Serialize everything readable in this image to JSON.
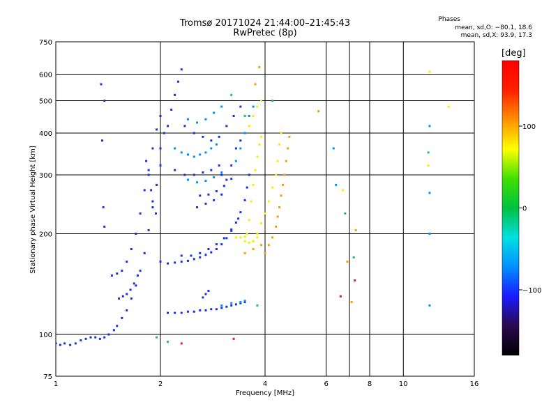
{
  "chart_data": {
    "type": "scatter",
    "title": "Tromsø 20171024 21:44:00–21:45:43",
    "subtitle": "RwPretec (8p)",
    "xlabel": "Frequency [MHz]",
    "ylabel": "Stationary phase Virtual Height [km]",
    "x_scale": "log",
    "y_scale": "log",
    "xlim": [
      1,
      16
    ],
    "ylim": [
      75,
      750
    ],
    "x_ticks": [
      "1",
      "2",
      "4",
      "6",
      "8",
      "10",
      "16"
    ],
    "x_tick_values": [
      1,
      2,
      4,
      6,
      8,
      10,
      16
    ],
    "x_grid_values": [
      1,
      2,
      4,
      6,
      7,
      8,
      10,
      16
    ],
    "y_ticks": [
      "75",
      "100",
      "200",
      "300",
      "400",
      "500",
      "600",
      "750"
    ],
    "y_tick_values": [
      75,
      100,
      200,
      300,
      400,
      500,
      600,
      750
    ],
    "grid": true,
    "stats": {
      "heading": "Phases",
      "o_line": "mean, sd,O: −80.1, 18.6",
      "x_line": "mean, sd,X:  93.9, 17.3"
    },
    "colorbar": {
      "unit": "[deg]",
      "range": [
        -180,
        180
      ],
      "ticks": [
        "100",
        "0",
        "−100"
      ],
      "tick_values": [
        100,
        0,
        -100
      ],
      "colors": [
        "#000000",
        "#2a0a50",
        "#1a1aff",
        "#0090ff",
        "#00e0e0",
        "#00c040",
        "#40e000",
        "#ffff00",
        "#ff9000",
        "#ff2000",
        "#ff0000"
      ]
    },
    "series": [
      {
        "phase": -100,
        "color": "#1830e0",
        "points": [
          [
            1.0,
            94
          ],
          [
            1.03,
            93
          ],
          [
            1.06,
            94
          ],
          [
            1.1,
            93
          ],
          [
            1.14,
            94
          ],
          [
            1.18,
            96
          ],
          [
            1.22,
            97
          ],
          [
            1.26,
            98
          ],
          [
            1.3,
            98
          ],
          [
            1.34,
            97
          ],
          [
            1.38,
            98
          ],
          [
            1.42,
            100
          ],
          [
            1.47,
            103
          ],
          [
            1.5,
            106
          ],
          [
            1.55,
            112
          ],
          [
            1.6,
            118
          ],
          [
            1.65,
            128
          ],
          [
            1.7,
            140
          ],
          [
            1.75,
            155
          ],
          [
            1.8,
            175
          ],
          [
            1.85,
            205
          ],
          [
            1.9,
            240
          ],
          [
            1.95,
            280
          ],
          [
            2.0,
            320
          ],
          [
            1.52,
            128
          ],
          [
            1.56,
            130
          ],
          [
            1.6,
            132
          ],
          [
            1.64,
            136
          ],
          [
            1.68,
            142
          ],
          [
            1.72,
            150
          ],
          [
            1.45,
            150
          ],
          [
            1.5,
            152
          ],
          [
            1.55,
            155
          ],
          [
            1.6,
            165
          ],
          [
            1.65,
            180
          ],
          [
            1.7,
            200
          ],
          [
            1.75,
            230
          ],
          [
            1.8,
            270
          ],
          [
            1.85,
            310
          ],
          [
            1.9,
            360
          ],
          [
            1.95,
            410
          ],
          [
            2.0,
            450
          ],
          [
            2.0,
            165
          ],
          [
            2.1,
            163
          ],
          [
            2.2,
            164
          ],
          [
            2.3,
            165
          ],
          [
            2.4,
            166
          ],
          [
            2.5,
            168
          ],
          [
            2.6,
            170
          ],
          [
            2.7,
            173
          ],
          [
            2.8,
            176
          ],
          [
            2.9,
            180
          ],
          [
            3.0,
            186
          ],
          [
            3.1,
            194
          ],
          [
            3.2,
            204
          ],
          [
            3.3,
            216
          ],
          [
            3.4,
            232
          ],
          [
            3.5,
            252
          ],
          [
            3.55,
            275
          ],
          [
            3.6,
            300
          ],
          [
            2.3,
            172
          ],
          [
            2.45,
            172
          ],
          [
            2.6,
            175
          ],
          [
            2.75,
            180
          ],
          [
            2.9,
            186
          ],
          [
            3.05,
            194
          ],
          [
            3.2,
            206
          ],
          [
            3.35,
            222
          ],
          [
            2.1,
            116
          ],
          [
            2.2,
            116
          ],
          [
            2.3,
            116
          ],
          [
            2.4,
            117
          ],
          [
            2.5,
            117
          ],
          [
            2.6,
            118
          ],
          [
            2.7,
            118
          ],
          [
            2.8,
            119
          ],
          [
            2.9,
            119
          ],
          [
            3.0,
            120
          ],
          [
            3.1,
            121
          ],
          [
            3.2,
            122
          ],
          [
            3.3,
            123
          ],
          [
            3.4,
            124
          ],
          [
            3.5,
            125
          ],
          [
            2.2,
            310
          ],
          [
            2.35,
            300
          ],
          [
            2.5,
            300
          ],
          [
            2.65,
            305
          ],
          [
            2.8,
            310
          ],
          [
            2.95,
            320
          ],
          [
            2.6,
            260
          ],
          [
            2.75,
            262
          ],
          [
            2.9,
            268
          ],
          [
            3.05,
            278
          ],
          [
            3.2,
            292
          ],
          [
            2.55,
            240
          ],
          [
            2.7,
            246
          ],
          [
            2.85,
            252
          ],
          [
            3.0,
            262
          ],
          [
            2.0,
            360
          ],
          [
            2.05,
            400
          ],
          [
            2.1,
            420
          ],
          [
            2.15,
            470
          ],
          [
            2.2,
            520
          ],
          [
            2.25,
            570
          ],
          [
            2.3,
            620
          ],
          [
            2.35,
            420
          ],
          [
            2.5,
            400
          ],
          [
            2.65,
            390
          ],
          [
            2.8,
            380
          ],
          [
            2.95,
            390
          ],
          [
            3.1,
            420
          ],
          [
            3.25,
            450
          ],
          [
            3.4,
            480
          ],
          [
            1.82,
            330
          ],
          [
            1.85,
            300
          ],
          [
            1.88,
            270
          ],
          [
            1.9,
            250
          ],
          [
            1.94,
            230
          ],
          [
            1.35,
            560
          ],
          [
            1.38,
            500
          ],
          [
            1.36,
            380
          ],
          [
            1.37,
            240
          ],
          [
            1.38,
            210
          ],
          [
            2.75,
            135
          ],
          [
            2.7,
            132
          ],
          [
            2.65,
            129
          ],
          [
            3.0,
            300
          ],
          [
            3.1,
            290
          ],
          [
            3.2,
            320
          ],
          [
            3.3,
            360
          ],
          [
            3.4,
            380
          ]
        ]
      },
      {
        "phase": -60,
        "color": "#0090ff",
        "points": [
          [
            2.2,
            360
          ],
          [
            2.3,
            350
          ],
          [
            2.4,
            345
          ],
          [
            2.5,
            340
          ],
          [
            2.6,
            345
          ],
          [
            2.7,
            350
          ],
          [
            2.8,
            360
          ],
          [
            2.9,
            370
          ],
          [
            2.4,
            290
          ],
          [
            2.55,
            285
          ],
          [
            2.7,
            288
          ],
          [
            2.85,
            295
          ],
          [
            3.0,
            305
          ],
          [
            2.4,
            440
          ],
          [
            2.55,
            430
          ],
          [
            2.7,
            440
          ],
          [
            2.85,
            460
          ],
          [
            3.0,
            480
          ],
          [
            3.3,
            330
          ],
          [
            3.4,
            360
          ],
          [
            3.5,
            400
          ],
          [
            3.6,
            450
          ],
          [
            3.7,
            480
          ],
          [
            3.0,
            122
          ],
          [
            3.2,
            124
          ],
          [
            3.4,
            125
          ],
          [
            3.5,
            126
          ],
          [
            6.3,
            360
          ],
          [
            6.4,
            280
          ],
          [
            11.9,
            420
          ],
          [
            11.9,
            265
          ],
          [
            11.9,
            200
          ],
          [
            11.9,
            122
          ]
        ]
      },
      {
        "phase": 60,
        "color": "#f0f000",
        "points": [
          [
            3.55,
            200
          ],
          [
            3.6,
            220
          ],
          [
            3.65,
            250
          ],
          [
            3.7,
            280
          ],
          [
            3.75,
            310
          ],
          [
            3.8,
            340
          ],
          [
            3.85,
            370
          ],
          [
            3.9,
            390
          ],
          [
            3.7,
            190
          ],
          [
            3.8,
            200
          ],
          [
            3.9,
            215
          ],
          [
            4.0,
            230
          ],
          [
            4.1,
            250
          ],
          [
            4.2,
            275
          ],
          [
            4.3,
            300
          ],
          [
            4.35,
            330
          ],
          [
            4.4,
            370
          ],
          [
            4.45,
            400
          ],
          [
            3.5,
            190
          ],
          [
            3.6,
            188
          ],
          [
            3.7,
            190
          ],
          [
            3.8,
            195
          ],
          [
            3.3,
            195
          ],
          [
            3.4,
            195
          ],
          [
            3.5,
            196
          ],
          [
            3.6,
            420
          ],
          [
            3.7,
            450
          ],
          [
            3.8,
            480
          ],
          [
            3.9,
            500
          ],
          [
            11.9,
            610
          ],
          [
            13.5,
            480
          ],
          [
            11.8,
            320
          ],
          [
            6.7,
            270
          ]
        ]
      },
      {
        "phase": 110,
        "color": "#f0a000",
        "points": [
          [
            4.0,
            175
          ],
          [
            4.1,
            185
          ],
          [
            4.2,
            195
          ],
          [
            4.3,
            210
          ],
          [
            4.35,
            225
          ],
          [
            4.4,
            240
          ],
          [
            4.45,
            260
          ],
          [
            4.5,
            280
          ],
          [
            4.55,
            300
          ],
          [
            4.6,
            330
          ],
          [
            4.65,
            360
          ],
          [
            4.7,
            390
          ],
          [
            3.5,
            175
          ],
          [
            3.7,
            180
          ],
          [
            3.9,
            185
          ],
          [
            7.3,
            205
          ],
          [
            6.9,
            165
          ],
          [
            7.1,
            125
          ],
          [
            5.7,
            465
          ],
          [
            3.75,
            560
          ],
          [
            3.85,
            630
          ]
        ]
      },
      {
        "phase": 20,
        "color": "#20c060",
        "points": [
          [
            3.2,
            520
          ],
          [
            3.5,
            450
          ],
          [
            3.8,
            122
          ],
          [
            4.2,
            500
          ],
          [
            2.1,
            95
          ],
          [
            1.95,
            98
          ],
          [
            7.2,
            170
          ],
          [
            6.8,
            230
          ],
          [
            11.8,
            350
          ]
        ]
      },
      {
        "phase": 160,
        "color": "#e02020",
        "points": [
          [
            2.3,
            94
          ],
          [
            3.25,
            97
          ],
          [
            7.25,
            145
          ],
          [
            6.6,
            130
          ]
        ]
      }
    ]
  }
}
